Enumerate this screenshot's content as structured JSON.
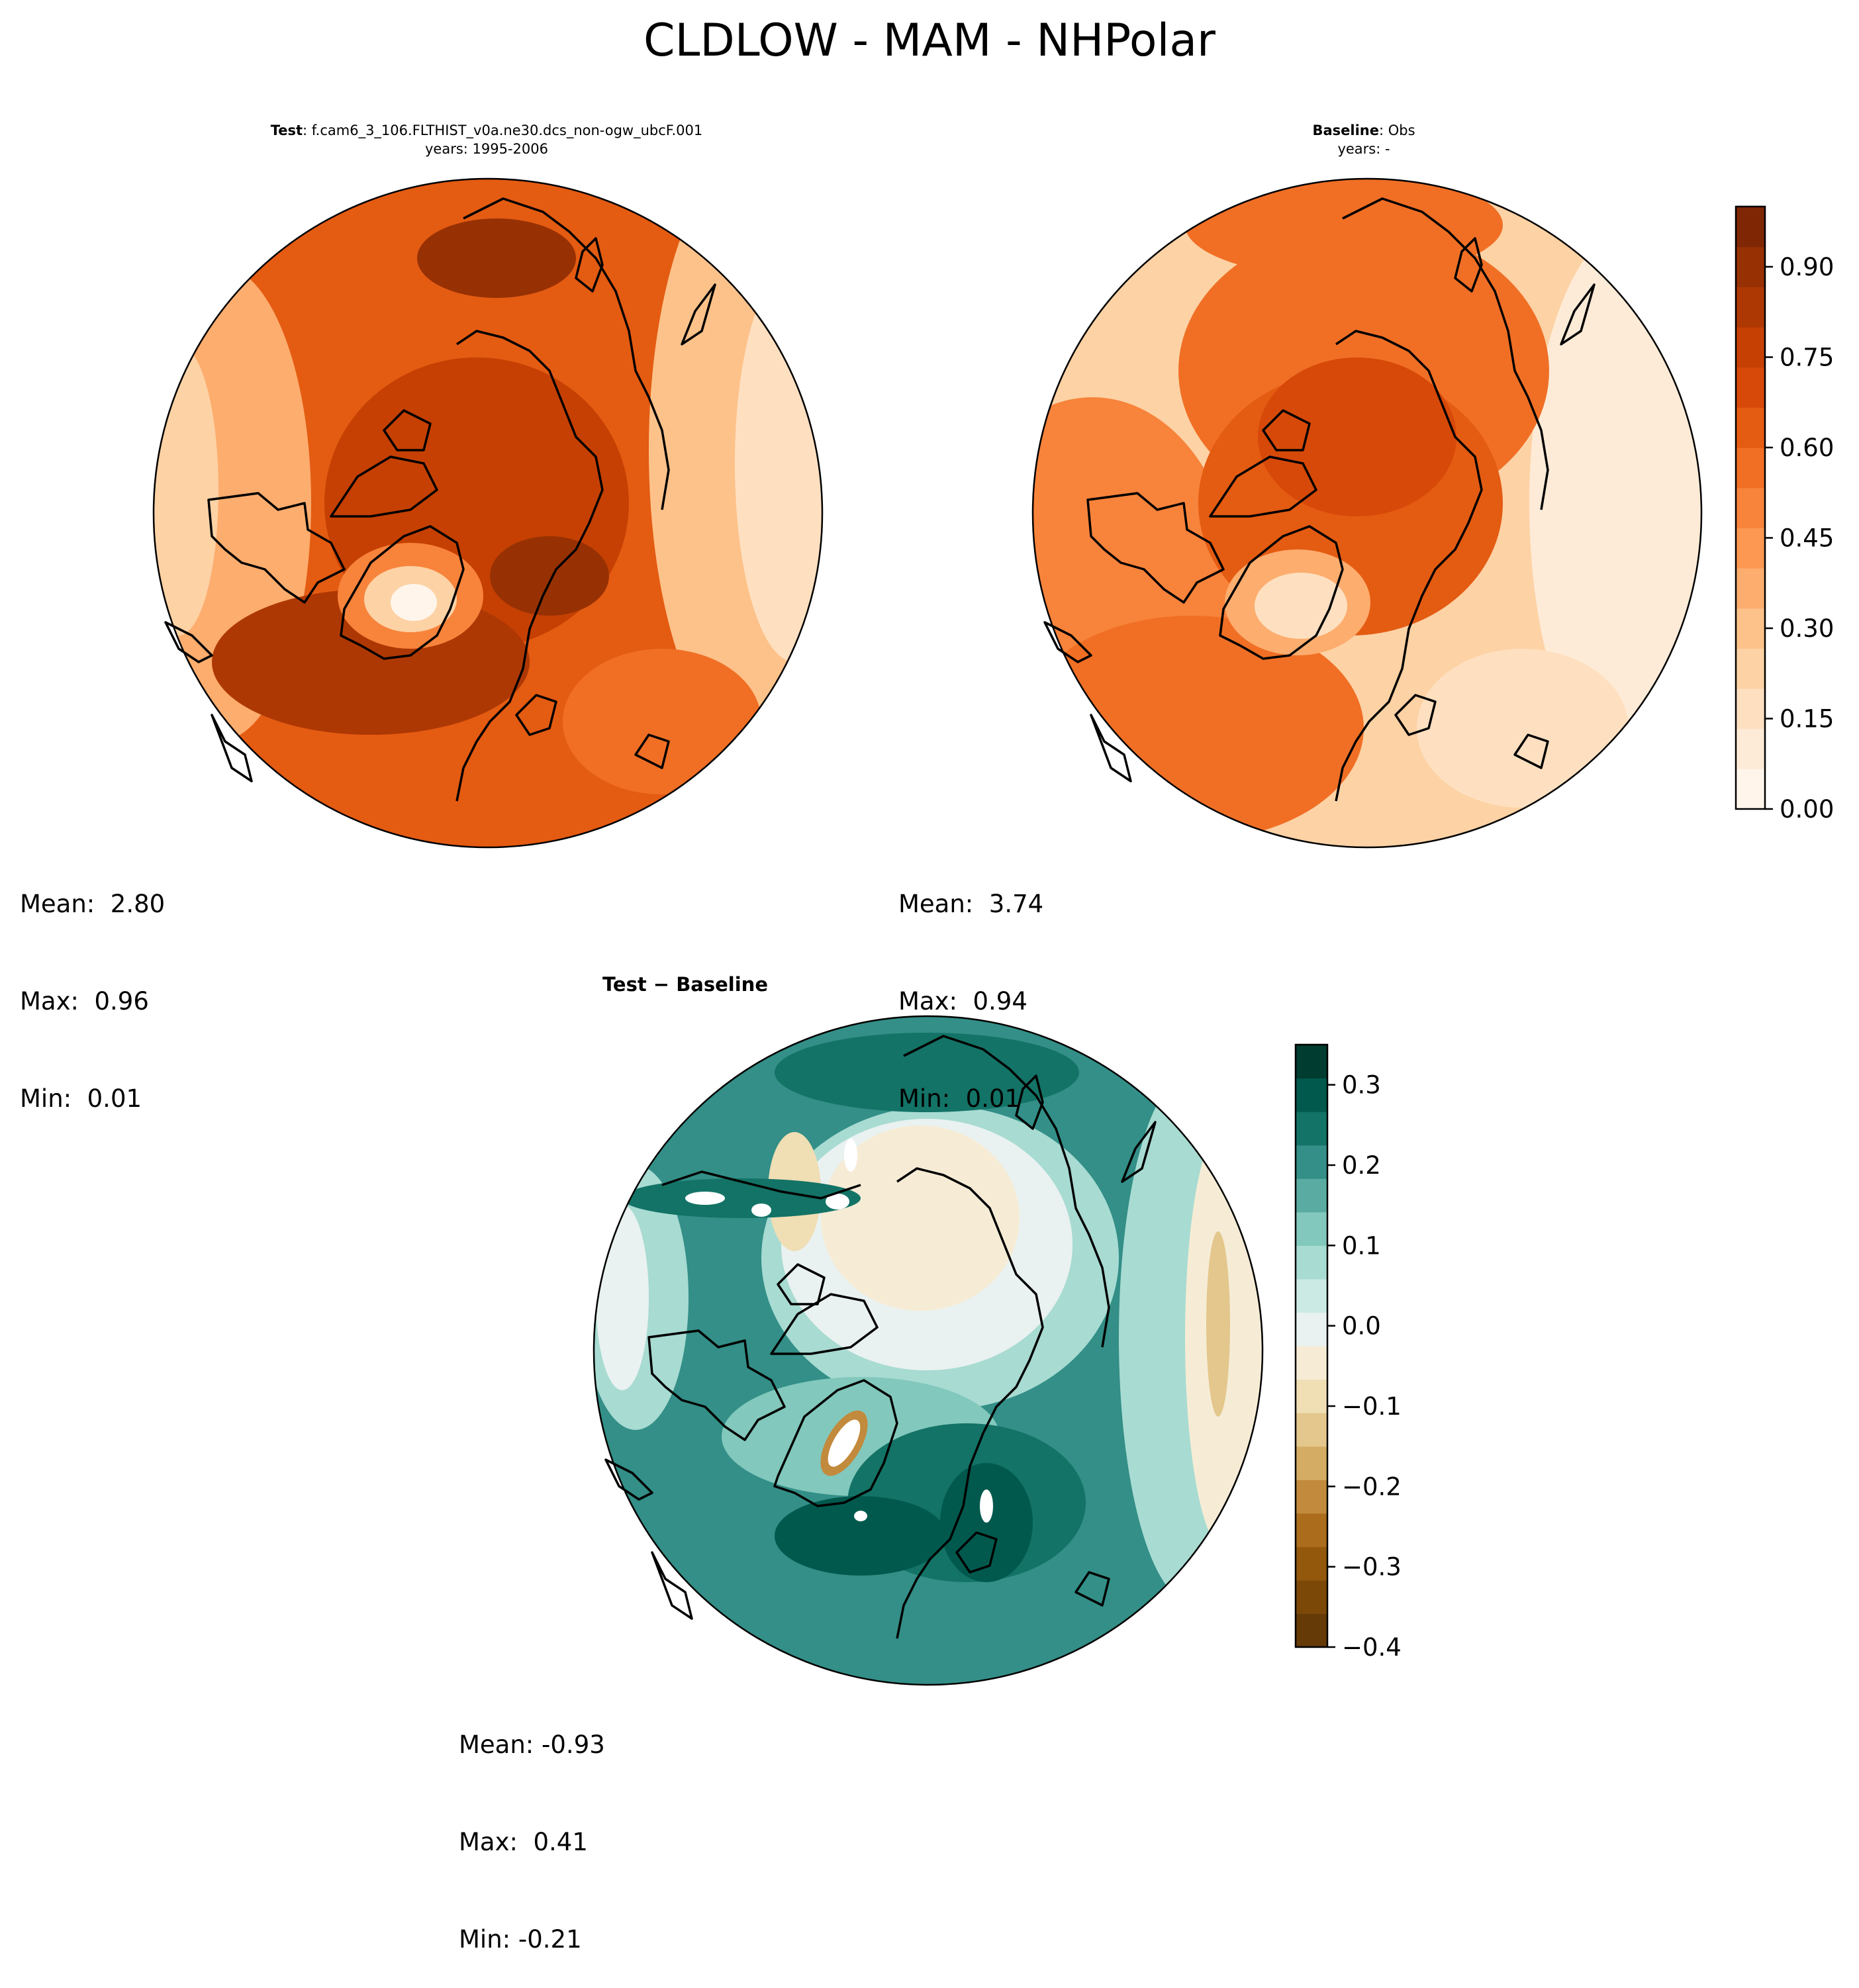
{
  "figure": {
    "title": "CLDLOW - MAM - NHPolar"
  },
  "panels": {
    "test": {
      "title_bold": "Test",
      "title_rest": ": f.cam6_3_106.FLTHIST_v0a.ne30.dcs_non-ogw_ubcF.001",
      "subtitle": "years: 1995-2006",
      "mean_text": "Mean:  2.80",
      "max_text": "Max:  0.96",
      "min_text": "Min:  0.01"
    },
    "baseline": {
      "title_bold": "Baseline",
      "title_rest": ": Obs",
      "subtitle": "years: -",
      "mean_text": "Mean:  3.74",
      "max_text": "Max:  0.94",
      "min_text": "Min:  0.01"
    },
    "diff": {
      "title_bold": "Test − Baseline",
      "mean_text": "Mean: -0.93",
      "max_text": "Max:  0.41",
      "min_text": "Min: -0.21"
    }
  },
  "colorbars": {
    "main": {
      "ticks": [
        "0.00",
        "0.15",
        "0.30",
        "0.45",
        "0.60",
        "0.75",
        "0.90"
      ],
      "colors": [
        "#fff5eb",
        "#feebd7",
        "#fee0c1",
        "#fdd2a5",
        "#fdc28a",
        "#fdad6e",
        "#fd9853",
        "#f8833b",
        "#f06f25",
        "#e45b12",
        "#d74909",
        "#c54002",
        "#ae3803",
        "#973103",
        "#7f2704"
      ]
    },
    "diff": {
      "ticks": [
        "−0.4",
        "−0.3",
        "−0.2",
        "−0.1",
        "0.0",
        "0.1",
        "0.2",
        "0.3"
      ],
      "colors": [
        "#653a06",
        "#7c4808",
        "#94580c",
        "#ab6c1b",
        "#c28a3c",
        "#d4ac63",
        "#e3c78c",
        "#f0deb4",
        "#f6ecd6",
        "#e9f2f0",
        "#cbeae4",
        "#a8dbd2",
        "#82c8bc",
        "#5aaca2",
        "#338f87",
        "#137366",
        "#01594d",
        "#003c30"
      ]
    }
  },
  "chart_data": [
    {
      "type": "heatmap",
      "title": "Test: f.cam6_3_106.FLTHIST_v0a.ne30.dcs_non-ogw_ubcF.001 years: 1995-2006",
      "projection": "north-polar stereographic",
      "stats": {
        "mean": 2.8,
        "max": 0.96,
        "min": 0.01
      },
      "colorbar": {
        "vmin": 0.0,
        "vmax": 1.0,
        "levels": 15,
        "ticks": [
          0.0,
          0.15,
          0.3,
          0.45,
          0.6,
          0.75,
          0.9
        ],
        "cmap": "Oranges"
      }
    },
    {
      "type": "heatmap",
      "title": "Baseline: Obs years: -",
      "projection": "north-polar stereographic",
      "stats": {
        "mean": 3.74,
        "max": 0.94,
        "min": 0.01
      },
      "colorbar": {
        "vmin": 0.0,
        "vmax": 1.0,
        "levels": 15,
        "ticks": [
          0.0,
          0.15,
          0.3,
          0.45,
          0.6,
          0.75,
          0.9
        ],
        "cmap": "Oranges"
      }
    },
    {
      "type": "heatmap",
      "title": "Test − Baseline",
      "projection": "north-polar stereographic",
      "stats": {
        "mean": -0.93,
        "max": 0.41,
        "min": -0.21
      },
      "colorbar": {
        "vmin": -0.4,
        "vmax": 0.35,
        "ticks": [
          -0.4,
          -0.3,
          -0.2,
          -0.1,
          0.0,
          0.1,
          0.2,
          0.3
        ],
        "cmap": "BrBG"
      }
    }
  ]
}
